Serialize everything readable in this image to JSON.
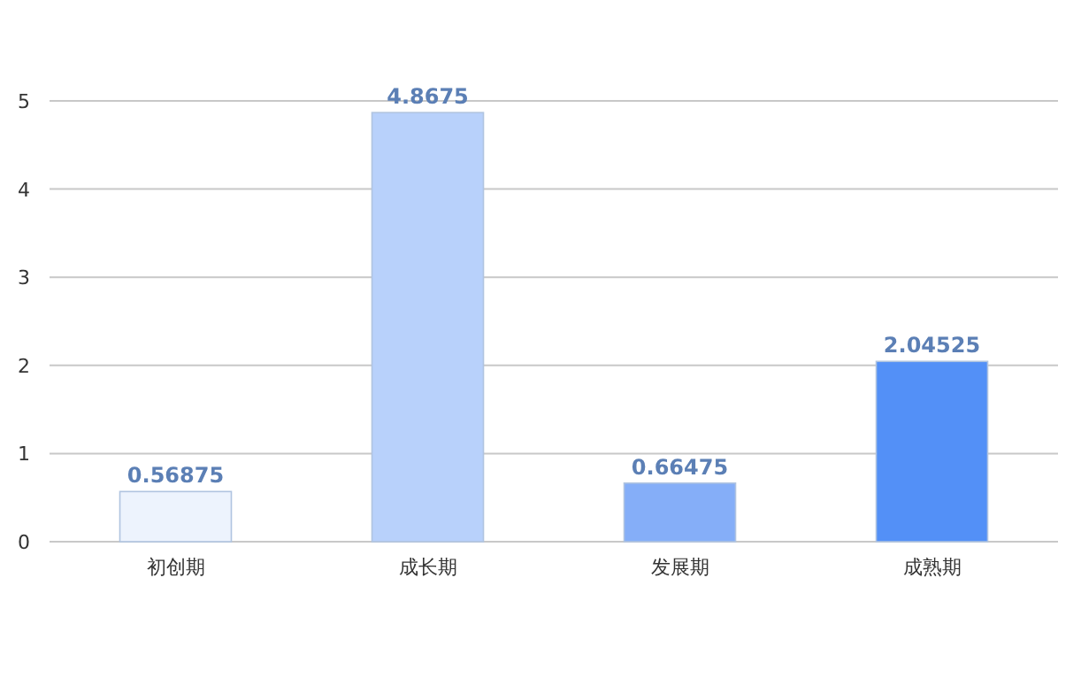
{
  "chart_data": {
    "type": "bar",
    "categories": [
      "初创期",
      "成长期",
      "发展期",
      "成熟期"
    ],
    "values": [
      0.56875,
      4.8675,
      0.66475,
      2.04525
    ],
    "colors": [
      "#edf3fd",
      "#b8d1fb",
      "#85aef8",
      "#5390f7"
    ],
    "ylim": [
      0,
      5
    ],
    "yticks": [
      0,
      1,
      2,
      3,
      4,
      5
    ],
    "grid": "y",
    "data_labels": true
  }
}
